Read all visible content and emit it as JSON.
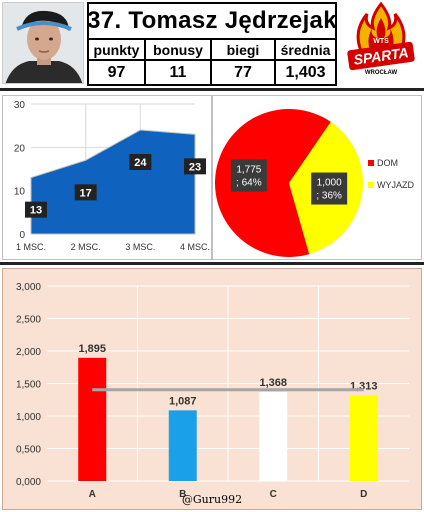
{
  "header": {
    "title": "37. Tomasz Jędrzejak",
    "stats": [
      {
        "label": "punkty",
        "value": "97"
      },
      {
        "label": "bonusy",
        "value": "11"
      },
      {
        "label": "biegi",
        "value": "77"
      },
      {
        "label": "średnia",
        "value": "1,403"
      }
    ],
    "logo": {
      "top_text": "WTS",
      "main_text": "SPARTA",
      "bottom_text": "WROCŁAW"
    }
  },
  "watermark": "@Guru992",
  "colors": {
    "area_fill": "#0f63be",
    "area_point_label_bg": "#222222",
    "pie_home": "#ff0000",
    "pie_away": "#ffff00",
    "bar_panel_bg": "#f9e2d3",
    "bar_a": "#ff0000",
    "bar_b": "#1aa0e8",
    "bar_c": "#ffffff",
    "bar_d": "#ffff00",
    "avg_line": "#a6a6a6"
  },
  "chart_data": [
    {
      "type": "area",
      "categories": [
        "1 MSC.",
        "2 MSC.",
        "3 MSC.",
        "4 MSC."
      ],
      "values": [
        13,
        17,
        24,
        23
      ],
      "data_labels": [
        "13",
        "17",
        "24",
        "23"
      ],
      "y_ticks": [
        "0",
        "10",
        "20",
        "30"
      ],
      "ylim": [
        0,
        30
      ],
      "grid": true
    },
    {
      "type": "pie",
      "slices": [
        {
          "name": "DOM",
          "value": 1.775,
          "label": "1,775 ; 64%"
        },
        {
          "name": "WYJAZD",
          "value": 1.0,
          "label": "1,000 ; 36%"
        }
      ],
      "legend": "right"
    },
    {
      "type": "bar",
      "categories": [
        "A",
        "B",
        "C",
        "D"
      ],
      "values": [
        1.895,
        1.087,
        1.368,
        1.313
      ],
      "data_labels": [
        "1,895",
        "1,087",
        "1,368",
        "1,313"
      ],
      "y_ticks": [
        "0,000",
        "0,500",
        "1,000",
        "1,500",
        "2,000",
        "2,500",
        "3,000"
      ],
      "ylim": [
        0,
        3
      ],
      "average_line": 1.403,
      "grid": true
    }
  ]
}
